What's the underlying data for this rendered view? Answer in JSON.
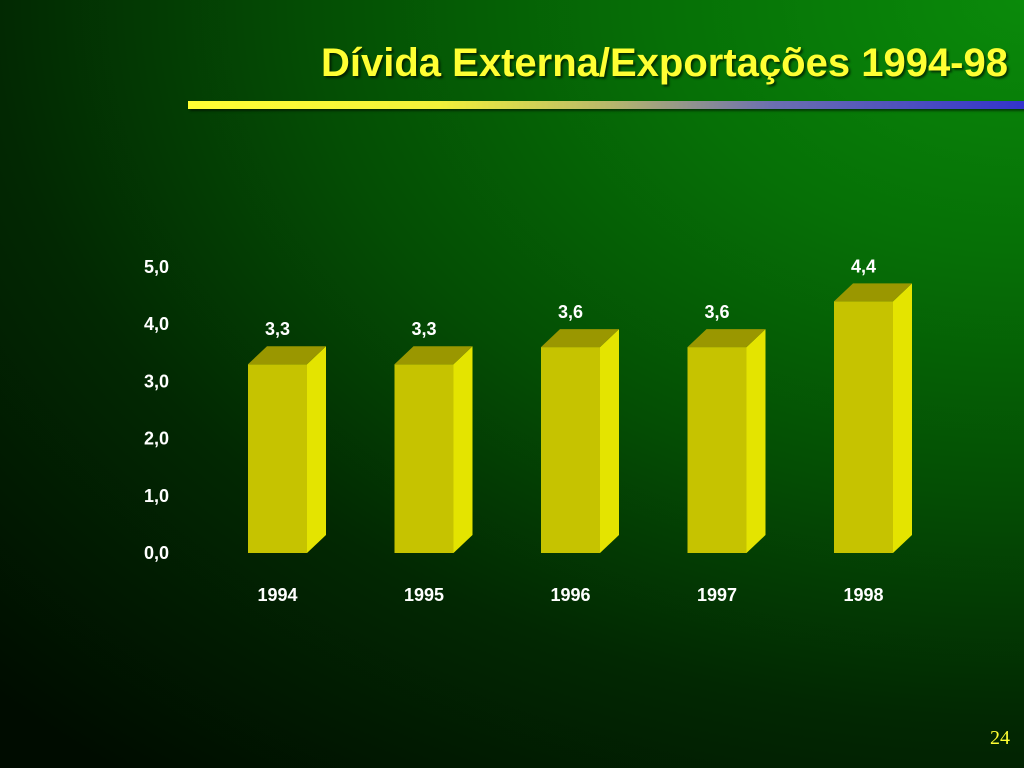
{
  "slide": {
    "title": "Dívida Externa/Exportações 1994-98",
    "page_number": "24"
  },
  "colors": {
    "title": "#ffff33",
    "bar_front": "#c6c300",
    "bar_side": "#e4e400",
    "bar_top": "#9a9700",
    "text": "#ffffff"
  },
  "chart_data": {
    "type": "bar",
    "style": "3d",
    "categories": [
      "1994",
      "1995",
      "1996",
      "1997",
      "1998"
    ],
    "values": [
      3.3,
      3.3,
      3.6,
      3.6,
      4.4
    ],
    "data_labels": [
      "3,3",
      "3,3",
      "3,6",
      "3,6",
      "4,4"
    ],
    "y_ticks": [
      "0,0",
      "1,0",
      "2,0",
      "3,0",
      "4,0",
      "5,0"
    ],
    "ylim": [
      0,
      5
    ],
    "grid": false,
    "legend": false
  }
}
